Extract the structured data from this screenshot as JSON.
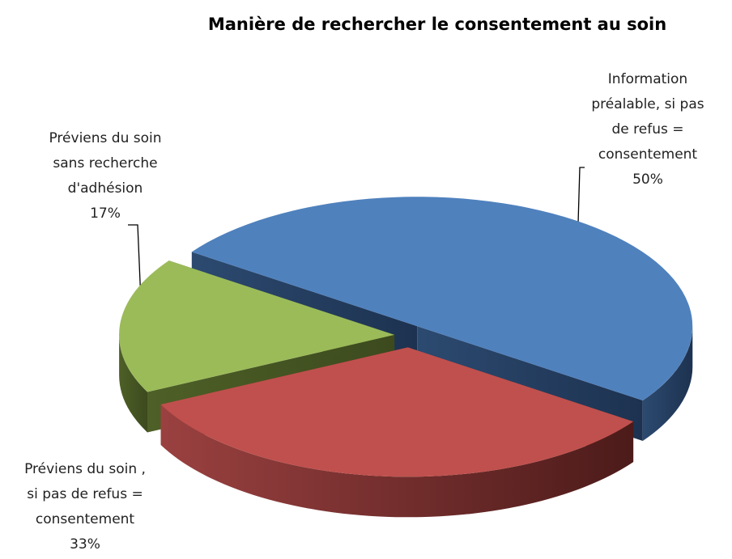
{
  "chart_data": {
    "type": "pie3d",
    "title": "Manière de rechercher le consentement au soin",
    "categories": [
      "Information préalable, si pas de refus = consentement",
      "Préviens du soin , si pas de refus = consentement",
      "Préviens du soin sans recherche d'adhésion"
    ],
    "values": [
      50,
      33,
      17
    ],
    "value_labels": [
      "50%",
      "33%",
      "17%"
    ],
    "colors": [
      "#4f81bd",
      "#c0504d",
      "#9bbb59"
    ]
  }
}
